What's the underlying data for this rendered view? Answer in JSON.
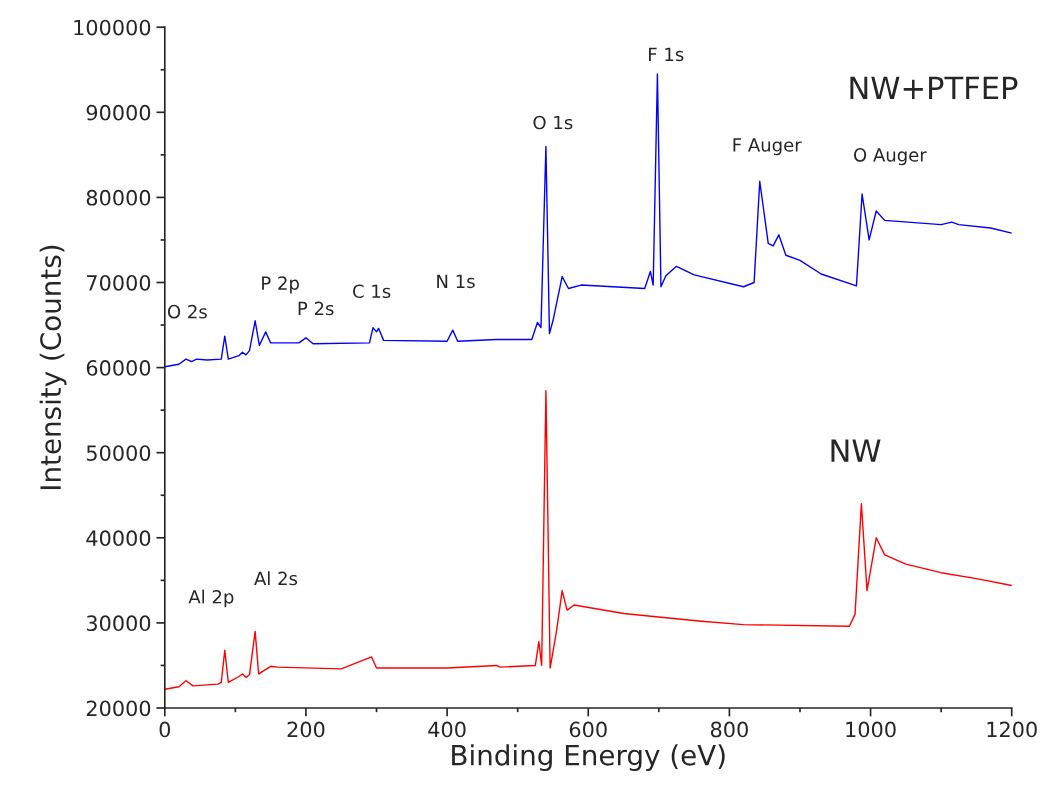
{
  "chart_data": {
    "type": "line",
    "xlabel": "Binding Energy (eV)",
    "ylabel": "Intensity (Counts)",
    "xlim": [
      0,
      1200
    ],
    "xticks": [
      0,
      200,
      400,
      600,
      800,
      1000,
      1200
    ],
    "ylim": [
      20000,
      100000
    ],
    "yticks": [
      20000,
      30000,
      40000,
      50000,
      60000,
      70000,
      80000,
      90000,
      100000
    ],
    "grid": false,
    "legend": false,
    "marker": "none",
    "line_style": "solid",
    "series": [
      {
        "color": "#0000ff",
        "x": [
          0,
          20,
          30,
          38,
          45,
          60,
          80,
          85,
          90,
          105,
          110,
          115,
          120,
          128,
          134,
          143,
          150,
          190,
          200,
          210,
          290,
          295,
          300,
          303,
          310,
          400,
          408,
          415,
          470,
          520,
          528,
          533,
          540,
          545,
          550,
          563,
          572,
          590,
          680,
          688,
          692,
          698,
          703,
          710,
          725,
          750,
          820,
          835,
          843,
          855,
          862,
          870,
          880,
          900,
          930,
          980,
          988,
          998,
          1008,
          1020,
          1100,
          1115,
          1125,
          1170,
          1200
        ],
        "values": [
          60100,
          60400,
          61000,
          60700,
          61000,
          60900,
          61000,
          63700,
          61000,
          61400,
          61800,
          61500,
          62000,
          65500,
          62600,
          64200,
          62900,
          62900,
          63500,
          62800,
          62900,
          64700,
          64200,
          64600,
          63200,
          63100,
          64400,
          63100,
          63300,
          63300,
          65300,
          64700,
          86000,
          64000,
          65500,
          70700,
          69300,
          69700,
          69300,
          71300,
          69700,
          94500,
          69500,
          70800,
          71900,
          70900,
          69500,
          70000,
          81900,
          74600,
          74300,
          75600,
          73200,
          72600,
          71000,
          69600,
          80400,
          75000,
          78400,
          77300,
          76800,
          77100,
          76800,
          76400,
          75800
        ]
      },
      {
        "color": "#ff0000",
        "x": [
          0,
          20,
          30,
          40,
          75,
          80,
          85,
          90,
          105,
          110,
          115,
          120,
          128,
          133,
          150,
          160,
          250,
          293,
          300,
          400,
          470,
          475,
          525,
          530,
          534,
          540,
          546,
          555,
          563,
          570,
          580,
          650,
          760,
          820,
          970,
          978,
          987,
          995,
          1008,
          1020,
          1050,
          1100,
          1150,
          1200
        ],
        "values": [
          22200,
          22500,
          23200,
          22600,
          22800,
          23000,
          26800,
          23000,
          23700,
          24000,
          23600,
          23900,
          29000,
          24000,
          24900,
          24800,
          24600,
          26000,
          24700,
          24700,
          25000,
          24800,
          25000,
          27800,
          25000,
          57300,
          24700,
          29000,
          33800,
          31500,
          32100,
          31100,
          30200,
          29800,
          29600,
          31000,
          44000,
          33800,
          40000,
          38000,
          36900,
          35900,
          35200,
          34400
        ]
      }
    ],
    "annotations": [
      {
        "text": "O 2s",
        "x": 30,
        "y": 61000
      },
      {
        "text": "P 2p",
        "x": 128,
        "y": 65500
      },
      {
        "text": "P 2s",
        "x": 200,
        "y": 63500
      },
      {
        "text": "C 1s",
        "x": 295,
        "y": 64700
      },
      {
        "text": "N 1s",
        "x": 408,
        "y": 64400
      },
      {
        "text": "O 1s",
        "x": 540,
        "y": 86000
      },
      {
        "text": "F 1s",
        "x": 698,
        "y": 94500
      },
      {
        "text": "F Auger",
        "x": 843,
        "y": 81900
      },
      {
        "text": "O Auger",
        "x": 988,
        "y": 80400
      },
      "Al 2p",
      {
        "text": "Al 2s",
        "x": 128,
        "y": 29000
      },
      "NW+PTFEP",
      "NW"
    ]
  }
}
